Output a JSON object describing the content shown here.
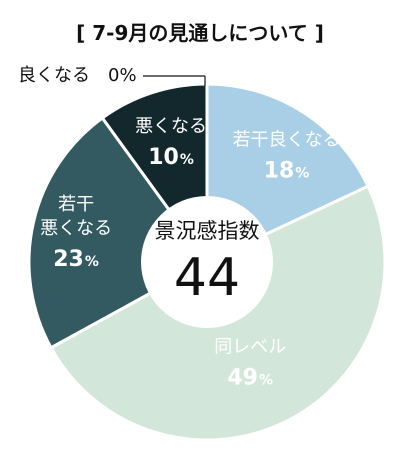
{
  "chart_data": {
    "type": "pie",
    "variant": "donut",
    "title": "[ 7-9月の見通しについて ]",
    "center_label": {
      "title": "景況感指数",
      "value": "44"
    },
    "slices": [
      {
        "label_lines": [
          "若干良くなる"
        ],
        "value": 18,
        "percent_text": "18",
        "color": "#a9cfe6",
        "text_color": "#ffffff"
      },
      {
        "label_lines": [
          "同レベル"
        ],
        "value": 49,
        "percent_text": "49",
        "color": "#d3e6da",
        "text_color": "#ffffff"
      },
      {
        "label_lines": [
          "若干",
          "悪くなる"
        ],
        "value": 23,
        "percent_text": "23",
        "color": "#325a60",
        "text_color": "#ffffff"
      },
      {
        "label_lines": [
          "悪くなる"
        ],
        "value": 10,
        "percent_text": "10",
        "color": "#13282d",
        "text_color": "#ffffff"
      },
      {
        "label_lines": [
          "良くなる"
        ],
        "value": 0,
        "percent_text": "0%",
        "color": "#000000",
        "text_color": "#111111",
        "external_label": "良くなる　0%"
      }
    ],
    "percent_unit": "%"
  }
}
